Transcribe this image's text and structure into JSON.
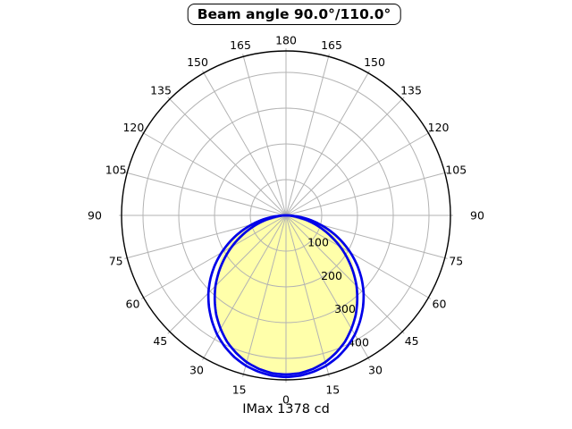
{
  "chart_data": {
    "type": "polar",
    "subtype": "luminous-intensity-distribution",
    "title": "Beam angle 90.0°/110.0°",
    "imax_label": "IMax 1378 cd",
    "imax_cd": 1378,
    "beam_angles_deg": [
      90.0,
      110.0
    ],
    "angle_ticks_deg": [
      0,
      15,
      30,
      45,
      60,
      75,
      90,
      105,
      120,
      135,
      150,
      165,
      180
    ],
    "angle_tick_step_deg": 15,
    "radial_ticks": [
      100,
      200,
      300,
      400
    ],
    "radial_axis_max": 460,
    "grid": true,
    "colors": {
      "curve": "#0000e8",
      "fill": "#ffffaa",
      "grid": "#b3b3b3",
      "axis": "#000000",
      "text": "#000000",
      "background": "#ffffff"
    },
    "angles_deg": [
      0,
      5,
      10,
      15,
      20,
      25,
      30,
      35,
      40,
      45,
      50,
      55,
      60,
      65,
      70,
      75,
      80,
      85,
      90
    ],
    "series": [
      {
        "name": "beam-90-plane",
        "style": "line-filled",
        "values": [
          445,
          443,
          436,
          425,
          409,
          390,
          366,
          340,
          310,
          279,
          245,
          210,
          175,
          139,
          105,
          72,
          42,
          17,
          0
        ]
      },
      {
        "name": "beam-110-plane",
        "style": "line",
        "values": [
          452,
          450,
          444,
          435,
          422,
          405,
          385,
          361,
          335,
          307,
          276,
          243,
          208,
          172,
          136,
          99,
          64,
          29,
          0
        ]
      }
    ]
  }
}
